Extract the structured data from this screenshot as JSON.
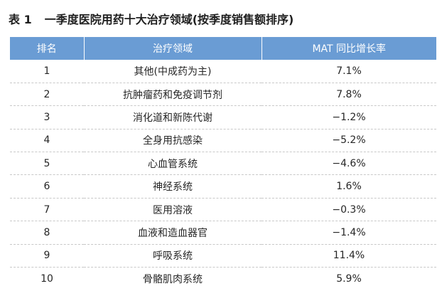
{
  "caption": {
    "number": "表 1",
    "title": "一季度医院用药十大治疗领域(按季度销售额排序)"
  },
  "table": {
    "headers": [
      "排名",
      "治疗领域",
      "MAT 同比增长率"
    ],
    "rows": [
      [
        "1",
        "其他(中成药为主)",
        "7.1%"
      ],
      [
        "2",
        "抗肿瘤药和免疫调节剂",
        "7.8%"
      ],
      [
        "3",
        "消化道和新陈代谢",
        "−1.2%"
      ],
      [
        "4",
        "全身用抗感染",
        "−5.2%"
      ],
      [
        "5",
        "心血管系统",
        "−4.6%"
      ],
      [
        "6",
        "神经系统",
        "1.6%"
      ],
      [
        "7",
        "医用溶液",
        "−0.3%"
      ],
      [
        "8",
        "血液和造血器官",
        "−1.4%"
      ],
      [
        "9",
        "呼吸系统",
        "11.4%"
      ],
      [
        "10",
        "骨骼肌肉系统",
        "5.9%"
      ]
    ]
  },
  "colors": {
    "header_bg": "#6a9cd4",
    "header_text": "#ffffff",
    "row_divider": "#c8c8c8"
  }
}
